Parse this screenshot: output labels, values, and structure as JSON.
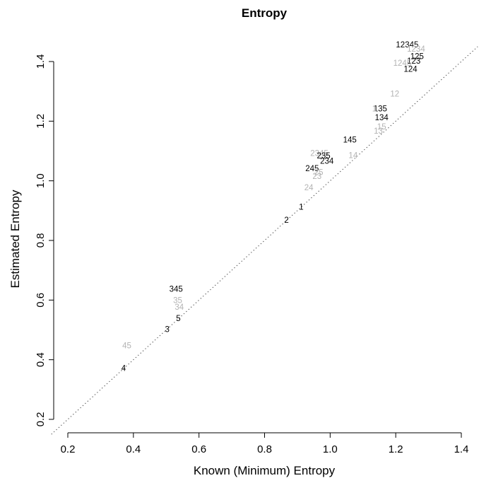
{
  "chart_data": {
    "type": "scatter",
    "title": "Entropy",
    "xlabel": "Known (Minimum) Entropy",
    "ylabel": "Estimated Entropy",
    "xlim": [
      0.15,
      1.4
    ],
    "ylim": [
      0.15,
      1.45
    ],
    "xticks": [
      "0.2",
      "0.4",
      "0.6",
      "0.8",
      "1.0",
      "1.2",
      "1.4"
    ],
    "yticks": [
      "0.2",
      "0.4",
      "0.6",
      "0.8",
      "1.0",
      "1.2",
      "1.4"
    ],
    "reference_line": "y = x (dotted)",
    "grid": false,
    "legend": "none",
    "colors": {
      "primary": "#000000",
      "secondary": "#b3b3b3",
      "reference": "#555555"
    },
    "points": [
      {
        "label": "12345",
        "x": 1.235,
        "y": 1.455,
        "color": "primary"
      },
      {
        "label": "1234",
        "x": 1.262,
        "y": 1.44,
        "color": "secondary"
      },
      {
        "label": "125",
        "x": 1.265,
        "y": 1.415,
        "color": "primary"
      },
      {
        "label": "123",
        "x": 1.255,
        "y": 1.4,
        "color": "primary"
      },
      {
        "label": "1245",
        "x": 1.22,
        "y": 1.393,
        "color": "secondary"
      },
      {
        "label": "124",
        "x": 1.245,
        "y": 1.373,
        "color": "primary"
      },
      {
        "label": "12",
        "x": 1.197,
        "y": 1.29,
        "color": "secondary"
      },
      {
        "label": "135",
        "x": 1.153,
        "y": 1.24,
        "color": "primary"
      },
      {
        "label": "1",
        "x": 1.135,
        "y": 1.24,
        "color": "secondary"
      },
      {
        "label": "134",
        "x": 1.157,
        "y": 1.21,
        "color": "primary"
      },
      {
        "label": "15",
        "x": 1.157,
        "y": 1.18,
        "color": "secondary"
      },
      {
        "label": "13",
        "x": 1.147,
        "y": 1.165,
        "color": "secondary"
      },
      {
        "label": "145",
        "x": 1.06,
        "y": 1.135,
        "color": "primary"
      },
      {
        "label": "2345",
        "x": 0.967,
        "y": 1.09,
        "color": "secondary"
      },
      {
        "label": "235",
        "x": 0.98,
        "y": 1.082,
        "color": "primary"
      },
      {
        "label": "14",
        "x": 1.07,
        "y": 1.083,
        "color": "secondary"
      },
      {
        "label": "234",
        "x": 0.99,
        "y": 1.065,
        "color": "primary"
      },
      {
        "label": "245",
        "x": 0.945,
        "y": 1.04,
        "color": "primary"
      },
      {
        "label": "25",
        "x": 0.965,
        "y": 1.027,
        "color": "secondary"
      },
      {
        "label": "23",
        "x": 0.96,
        "y": 1.013,
        "color": "secondary"
      },
      {
        "label": "24",
        "x": 0.935,
        "y": 0.976,
        "color": "secondary"
      },
      {
        "label": "1",
        "x": 0.912,
        "y": 0.91,
        "color": "primary"
      },
      {
        "label": "2",
        "x": 0.867,
        "y": 0.866,
        "color": "primary"
      },
      {
        "label": "345",
        "x": 0.53,
        "y": 0.635,
        "color": "primary"
      },
      {
        "label": "35",
        "x": 0.535,
        "y": 0.597,
        "color": "secondary"
      },
      {
        "label": "34",
        "x": 0.54,
        "y": 0.575,
        "color": "secondary"
      },
      {
        "label": "5",
        "x": 0.537,
        "y": 0.537,
        "color": "primary"
      },
      {
        "label": "3",
        "x": 0.503,
        "y": 0.5,
        "color": "primary"
      },
      {
        "label": "45",
        "x": 0.38,
        "y": 0.445,
        "color": "secondary"
      },
      {
        "label": "4",
        "x": 0.37,
        "y": 0.37,
        "color": "primary"
      }
    ]
  }
}
